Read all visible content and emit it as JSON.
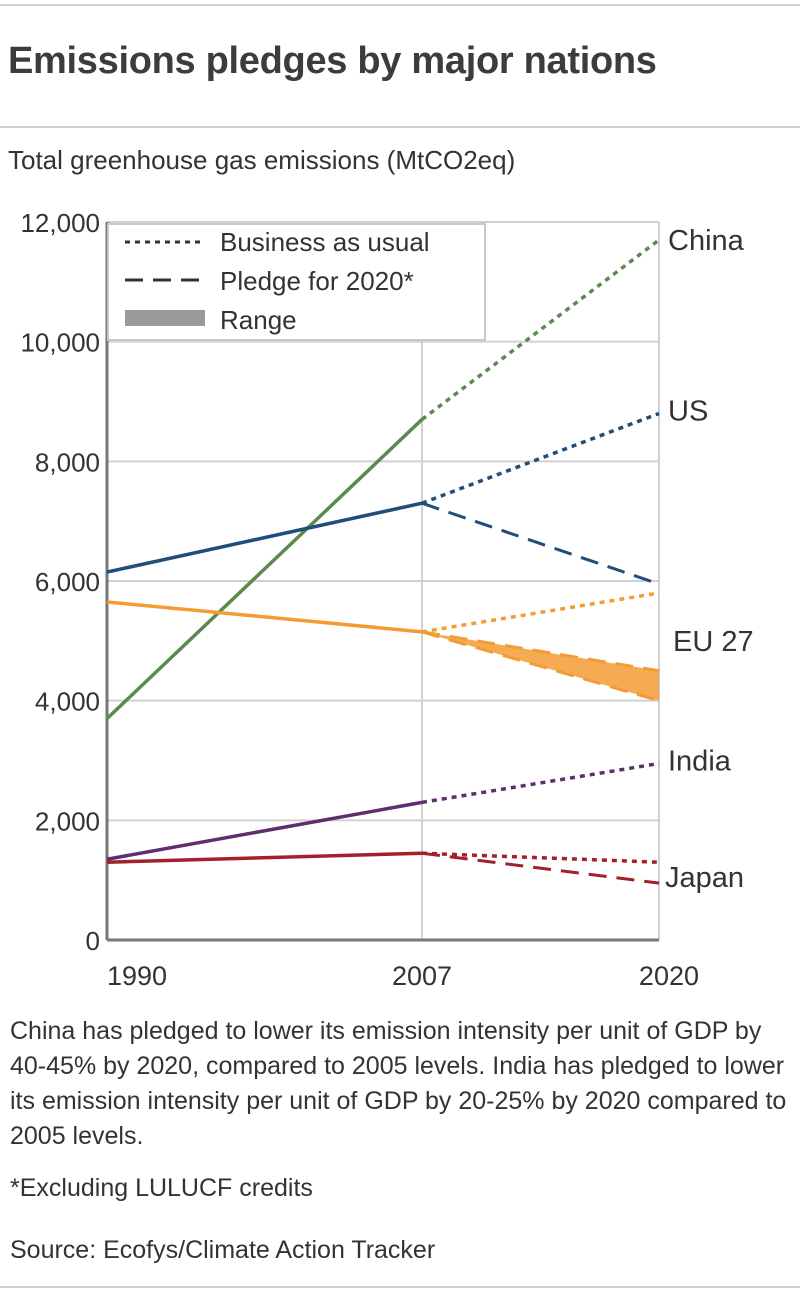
{
  "header": {
    "title": "Emissions pledges by major nations",
    "subtitle": "Total greenhouse gas emissions (MtCO2eq)"
  },
  "legend": {
    "business": "Business as usual",
    "pledge": "Pledge for 2020*",
    "range": "Range"
  },
  "chart_data": {
    "type": "line",
    "x": [
      "1990",
      "2007",
      "2020"
    ],
    "ylim": [
      0,
      12000
    ],
    "yticks": [
      0,
      2000,
      4000,
      6000,
      8000,
      10000,
      12000
    ],
    "ytick_labels": [
      "0",
      "2,000",
      "4,000",
      "6,000",
      "8,000",
      "10,000",
      "12,000"
    ],
    "grid": true,
    "legend_position": "top-left",
    "series": [
      {
        "name": "China",
        "color": "#5a8a4e",
        "historical": [
          3700,
          8700
        ],
        "business_as_usual": 11700,
        "pledge_2020": null
      },
      {
        "name": "US",
        "color": "#1f4e79",
        "historical": [
          6150,
          7300
        ],
        "business_as_usual": 8800,
        "pledge_2020": 5950
      },
      {
        "name": "EU 27",
        "color": "#f39c34",
        "historical": [
          5650,
          5150
        ],
        "business_as_usual": 5800,
        "pledge_2020_range": [
          4000,
          4500
        ]
      },
      {
        "name": "India",
        "color": "#5e2e6e",
        "historical": [
          1350,
          2300
        ],
        "business_as_usual": 2950,
        "pledge_2020": null
      },
      {
        "name": "Japan",
        "color": "#a3202b",
        "historical": [
          1300,
          1450
        ],
        "business_as_usual": 1300,
        "pledge_2020": 950
      }
    ]
  },
  "notes": {
    "body": "China has pledged to lower its emission intensity per unit of GDP by 40-45% by 2020, compared to 2005 levels. India has pledged to lower its emission intensity per unit of GDP by 20-25% by 2020 compared to 2005 levels.",
    "footnote": "*Excluding LULUCF credits",
    "source": "Source: Ecofys/Climate Action Tracker"
  }
}
